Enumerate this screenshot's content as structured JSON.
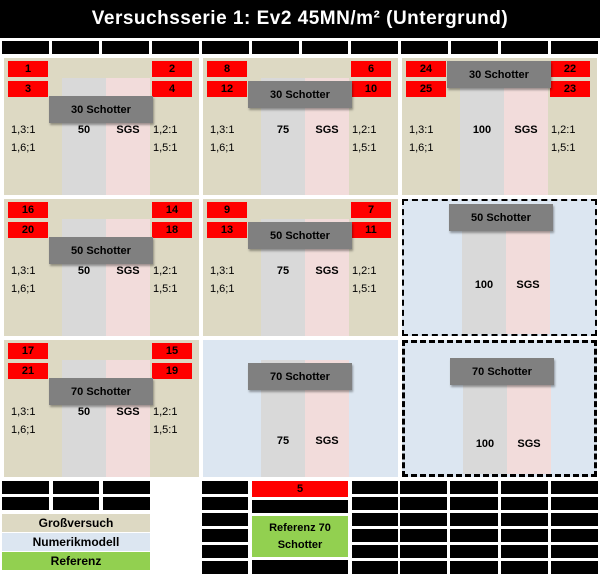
{
  "title": "Versuchsserie 1: Ev2 45MN/m² (Untergrund)",
  "colors": {
    "background_tan": "#ddd9c3",
    "background_blue": "#dce6f1",
    "cell_red": "#ff0000",
    "legend_green": "#92d050",
    "schotter_gray": "#808080",
    "strip_gray": "#d9d9d9",
    "strip_pink": "#f2dcdb",
    "bar_black": "#000000"
  },
  "blocks": [
    {
      "schotter": "30 Schotter",
      "value": "50",
      "sgs": "SGS",
      "nums_left": [
        "1",
        "3"
      ],
      "nums_right": [
        "2",
        "4"
      ],
      "ratio_tl": "1,3:1",
      "ratio_bl": "1,6;1",
      "ratio_tr": "1,2:1",
      "ratio_br": "1,5:1"
    },
    {
      "schotter": "30 Schotter",
      "value": "75",
      "sgs": "SGS",
      "nums_left": [
        "8",
        "12"
      ],
      "nums_right": [
        "6",
        "10"
      ],
      "ratio_tl": "1,3:1",
      "ratio_bl": "1,6;1",
      "ratio_tr": "1,2:1",
      "ratio_br": "1,5:1"
    },
    {
      "schotter": "30 Schotter",
      "value": "100",
      "sgs": "SGS",
      "nums_left": [
        "24",
        "25"
      ],
      "nums_right": [
        "22",
        "23"
      ],
      "ratio_tl": "1,3:1",
      "ratio_bl": "1,6;1",
      "ratio_tr": "1,2:1",
      "ratio_br": "1,5:1"
    },
    {
      "schotter": "50 Schotter",
      "value": "50",
      "sgs": "SGS",
      "nums_left": [
        "16",
        "20"
      ],
      "nums_right": [
        "14",
        "18"
      ],
      "ratio_tl": "1,3:1",
      "ratio_bl": "1,6;1",
      "ratio_tr": "1,2:1",
      "ratio_br": "1,5:1"
    },
    {
      "schotter": "50 Schotter",
      "value": "75",
      "sgs": "SGS",
      "nums_left": [
        "9",
        "13"
      ],
      "nums_right": [
        "7",
        "11"
      ],
      "ratio_tl": "1,3:1",
      "ratio_bl": "1,6;1",
      "ratio_tr": "1,2:1",
      "ratio_br": "1,5:1"
    },
    {
      "schotter": "50 Schotter",
      "value": "100",
      "sgs": "SGS"
    },
    {
      "schotter": "70 Schotter",
      "value": "50",
      "sgs": "SGS",
      "nums_left": [
        "17",
        "21"
      ],
      "nums_right": [
        "15",
        "19"
      ],
      "ratio_tl": "1,3:1",
      "ratio_bl": "1,6;1",
      "ratio_tr": "1,2:1",
      "ratio_br": "1,5:1"
    },
    {
      "schotter": "70 Schotter",
      "value": "75",
      "sgs": "SGS"
    },
    {
      "schotter": "70 Schotter",
      "value": "100",
      "sgs": "SGS"
    }
  ],
  "legend": [
    {
      "label": "Großversuch"
    },
    {
      "label": "Numerikmodell"
    },
    {
      "label": "Referenz"
    }
  ],
  "reference": {
    "number": "5",
    "label": "Referenz 70 Schotter"
  }
}
